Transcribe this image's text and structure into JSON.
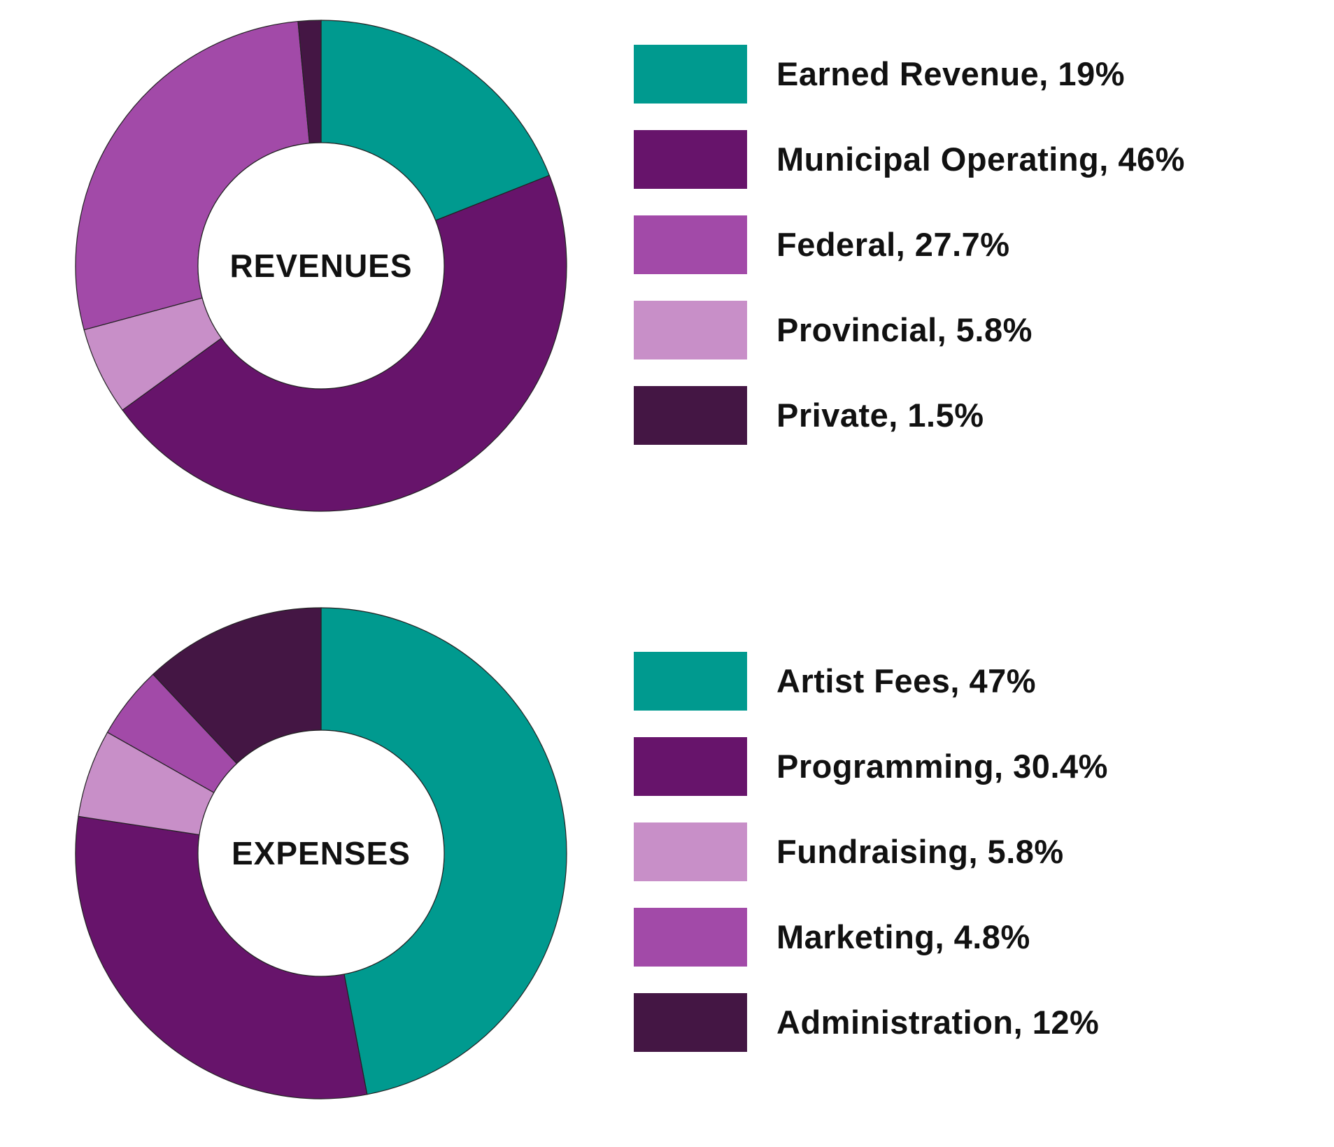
{
  "colors": {
    "teal": "#009a8f",
    "dark_purple": "#67146b",
    "purple": "#a24aa8",
    "light_purple": "#c88fc8",
    "darkest_purple": "#441644",
    "outline": "#222222"
  },
  "chart_data": [
    {
      "type": "pie",
      "variant": "donut",
      "center_label": "REVENUES",
      "start": "12 o'clock",
      "direction": "clockwise",
      "legend_position": "right",
      "slices": [
        {
          "label": "Earned Revenue",
          "value": 19,
          "legend_text": "Earned Revenue, 19%",
          "color": "#009a8f"
        },
        {
          "label": "Municipal Operating",
          "value": 46,
          "legend_text": "Municipal Operating, 46%",
          "color": "#67146b"
        },
        {
          "label": "Provincial",
          "value": 5.8,
          "legend_text": "Provincial, 5.8%",
          "color": "#c88fc8"
        },
        {
          "label": "Federal",
          "value": 27.7,
          "legend_text": "Federal, 27.7%",
          "color": "#a24aa8"
        },
        {
          "label": "Private",
          "value": 1.5,
          "legend_text": "Private, 1.5%",
          "color": "#441644"
        }
      ],
      "legend": [
        {
          "text": "Earned Revenue, 19%",
          "color": "#009a8f"
        },
        {
          "text": "Municipal Operating, 46%",
          "color": "#67146b"
        },
        {
          "text": "Federal, 27.7%",
          "color": "#a24aa8"
        },
        {
          "text": "Provincial, 5.8%",
          "color": "#c88fc8"
        },
        {
          "text": "Private, 1.5%",
          "color": "#441644"
        }
      ]
    },
    {
      "type": "pie",
      "variant": "donut",
      "center_label": "EXPENSES",
      "start": "12 o'clock",
      "direction": "clockwise",
      "legend_position": "right",
      "slices": [
        {
          "label": "Artist Fees",
          "value": 47,
          "legend_text": "Artist Fees, 47%",
          "color": "#009a8f"
        },
        {
          "label": "Programming",
          "value": 30.4,
          "legend_text": "Programming, 30.4%",
          "color": "#67146b"
        },
        {
          "label": "Fundraising",
          "value": 5.8,
          "legend_text": "Fundraising, 5.8%",
          "color": "#c88fc8"
        },
        {
          "label": "Marketing",
          "value": 4.8,
          "legend_text": "Marketing, 4.8%",
          "color": "#a24aa8"
        },
        {
          "label": "Administration",
          "value": 12,
          "legend_text": "Administration, 12%",
          "color": "#441644"
        }
      ],
      "legend": [
        {
          "text": "Artist Fees, 47%",
          "color": "#009a8f"
        },
        {
          "text": "Programming, 30.4%",
          "color": "#67146b"
        },
        {
          "text": "Fundraising, 5.8%",
          "color": "#c88fc8"
        },
        {
          "text": "Marketing, 4.8%",
          "color": "#a24aa8"
        },
        {
          "text": "Administration, 12%",
          "color": "#441644"
        }
      ]
    }
  ]
}
